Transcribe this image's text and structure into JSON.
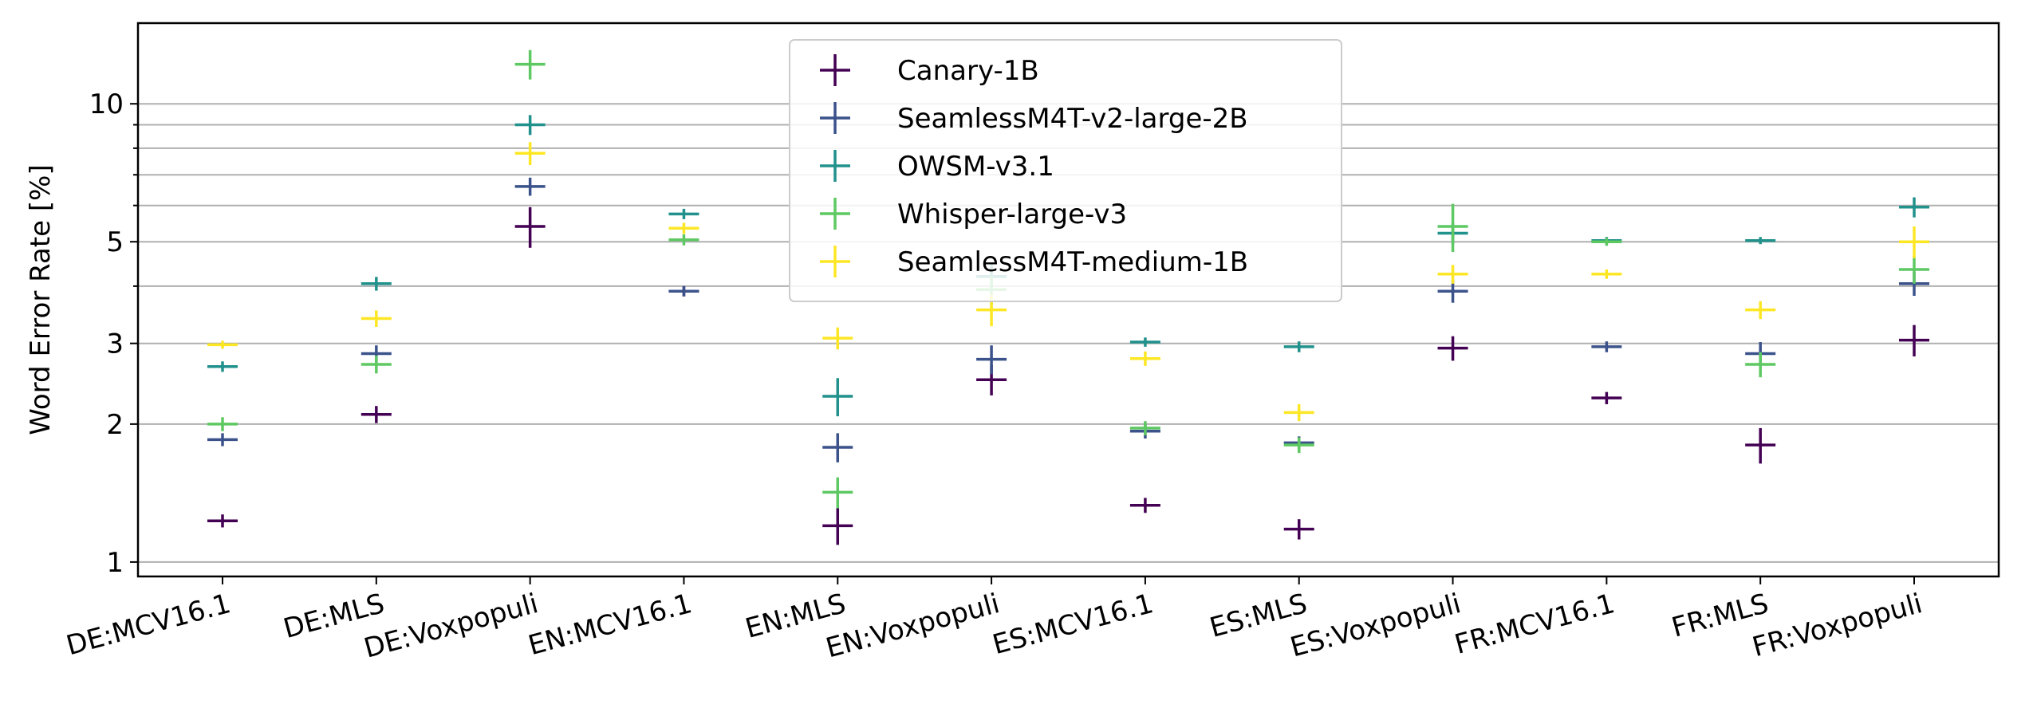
{
  "chart_data": {
    "type": "errorbar",
    "ylabel": "Word Error Rate [%]",
    "yscale": "log",
    "ylim": [
      0.93,
      15.0
    ],
    "yticks": [
      1,
      2,
      3,
      5,
      10
    ],
    "ytick_labels": [
      "1",
      "2",
      "3",
      "5",
      "10"
    ],
    "hgrid_values": [
      1,
      2,
      3,
      4,
      5,
      6,
      7,
      8,
      9,
      10
    ],
    "legend_position": "upper-center",
    "categories": [
      "DE:MCV16.1",
      "DE:MLS",
      "DE:Voxpopuli",
      "EN:MCV16.1",
      "EN:MLS",
      "EN:Voxpopuli",
      "ES:MCV16.1",
      "ES:MLS",
      "ES:Voxpopuli",
      "FR:MCV16.1",
      "FR:MLS",
      "FR:Voxpopuli"
    ],
    "series": [
      {
        "name": "Canary-1B",
        "color": "#440154",
        "values": [
          1.23,
          2.1,
          5.4,
          3.9,
          1.2,
          2.5,
          1.33,
          1.18,
          2.93,
          2.28,
          1.8,
          3.05
        ],
        "errors": [
          0.04,
          0.09,
          0.55,
          0.1,
          0.11,
          0.19,
          0.05,
          0.06,
          0.18,
          0.07,
          0.16,
          0.24
        ]
      },
      {
        "name": "SeamlessM4T-v2-large-2B",
        "color": "#3b528b",
        "values": [
          1.85,
          2.85,
          6.6,
          3.9,
          1.78,
          2.77,
          1.93,
          1.82,
          3.9,
          2.95,
          2.85,
          4.05
        ],
        "errors": [
          0.06,
          0.12,
          0.3,
          0.1,
          0.13,
          0.2,
          0.07,
          0.06,
          0.22,
          0.08,
          0.17,
          0.24
        ]
      },
      {
        "name": "OWSM-v3.1",
        "color": "#21918c",
        "values": [
          2.67,
          4.05,
          9.0,
          5.75,
          2.3,
          4.2,
          3.02,
          2.95,
          5.22,
          5.03,
          5.03,
          5.95
        ],
        "errors": [
          0.07,
          0.14,
          0.45,
          0.15,
          0.22,
          0.3,
          0.07,
          0.08,
          0.28,
          0.09,
          0.09,
          0.3
        ]
      },
      {
        "name": "Whisper-large-v3",
        "color": "#5ec962",
        "values": [
          2.0,
          2.7,
          12.2,
          5.05,
          1.42,
          3.93,
          1.96,
          1.8,
          5.4,
          5.0,
          2.7,
          4.35
        ],
        "errors": [
          0.07,
          0.12,
          0.9,
          0.14,
          0.11,
          0.28,
          0.07,
          0.07,
          0.65,
          0.1,
          0.17,
          0.3
        ]
      },
      {
        "name": "SeamlessM4T-medium-1B",
        "color": "#fde725",
        "values": [
          2.98,
          3.4,
          7.8,
          5.35,
          3.08,
          3.55,
          2.78,
          2.12,
          4.25,
          4.25,
          3.55,
          5.0
        ],
        "errors": [
          0.06,
          0.14,
          0.45,
          0.15,
          0.17,
          0.28,
          0.1,
          0.09,
          0.2,
          0.1,
          0.16,
          0.4
        ]
      }
    ]
  }
}
